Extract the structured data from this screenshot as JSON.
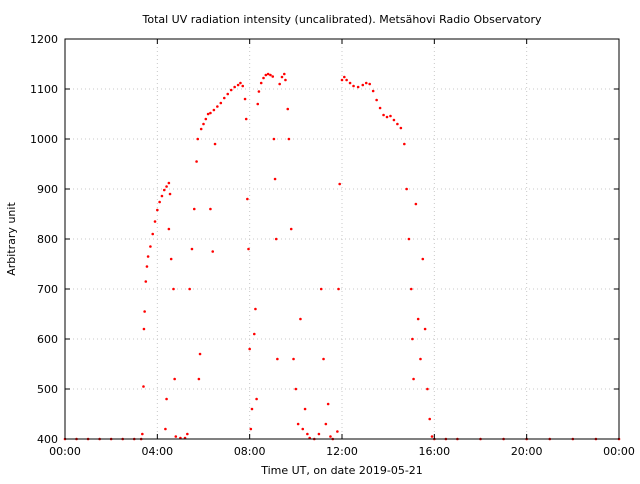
{
  "chart_data": {
    "type": "scatter",
    "title": "Total UV radiation intensity (uncalibrated). Metsähovi Radio Observatory",
    "xlabel": "Time UT, on date 2019-05-21",
    "ylabel": "Arbitrary unit",
    "xlim": [
      0,
      24
    ],
    "ylim": [
      400,
      1200
    ],
    "x_ticks": [
      {
        "value": 0,
        "label": "00:00"
      },
      {
        "value": 4,
        "label": "04:00"
      },
      {
        "value": 8,
        "label": "08:00"
      },
      {
        "value": 12,
        "label": "12:00"
      },
      {
        "value": 16,
        "label": "16:00"
      },
      {
        "value": 20,
        "label": "20:00"
      },
      {
        "value": 24,
        "label": "00:00"
      }
    ],
    "y_ticks": [
      400,
      500,
      600,
      700,
      800,
      900,
      1000,
      1100,
      1200
    ],
    "grid": true,
    "series_color": "#ff0000",
    "series": [
      {
        "name": "",
        "points": [
          [
            0.0,
            400
          ],
          [
            0.5,
            400
          ],
          [
            1.0,
            400
          ],
          [
            1.5,
            400
          ],
          [
            2.0,
            400
          ],
          [
            2.5,
            400
          ],
          [
            3.0,
            400
          ],
          [
            3.3,
            400
          ],
          [
            3.35,
            410
          ],
          [
            3.4,
            505
          ],
          [
            3.42,
            620
          ],
          [
            3.45,
            655
          ],
          [
            3.5,
            715
          ],
          [
            3.55,
            745
          ],
          [
            3.6,
            765
          ],
          [
            3.7,
            785
          ],
          [
            3.8,
            810
          ],
          [
            3.9,
            835
          ],
          [
            4.0,
            858
          ],
          [
            4.1,
            874
          ],
          [
            4.2,
            886
          ],
          [
            4.3,
            898
          ],
          [
            4.4,
            905
          ],
          [
            4.5,
            912
          ],
          [
            4.55,
            890
          ],
          [
            4.35,
            420
          ],
          [
            4.4,
            480
          ],
          [
            4.5,
            820
          ],
          [
            4.6,
            760
          ],
          [
            4.7,
            700
          ],
          [
            4.75,
            520
          ],
          [
            4.8,
            405
          ],
          [
            5.0,
            402
          ],
          [
            5.2,
            402
          ],
          [
            5.3,
            410
          ],
          [
            5.4,
            700
          ],
          [
            5.5,
            780
          ],
          [
            5.6,
            860
          ],
          [
            5.7,
            955
          ],
          [
            5.75,
            1000
          ],
          [
            5.8,
            520
          ],
          [
            5.85,
            570
          ],
          [
            5.9,
            1020
          ],
          [
            6.0,
            1030
          ],
          [
            6.1,
            1040
          ],
          [
            6.2,
            1050
          ],
          [
            6.3,
            1052
          ],
          [
            6.45,
            1058
          ],
          [
            6.6,
            1065
          ],
          [
            6.75,
            1072
          ],
          [
            6.9,
            1082
          ],
          [
            7.05,
            1090
          ],
          [
            7.2,
            1098
          ],
          [
            7.35,
            1104
          ],
          [
            7.5,
            1108
          ],
          [
            7.6,
            1112
          ],
          [
            7.7,
            1106
          ],
          [
            6.3,
            860
          ],
          [
            6.4,
            775
          ],
          [
            6.5,
            990
          ],
          [
            7.8,
            1080
          ],
          [
            7.85,
            1040
          ],
          [
            7.9,
            880
          ],
          [
            7.95,
            780
          ],
          [
            8.0,
            580
          ],
          [
            8.05,
            420
          ],
          [
            8.1,
            460
          ],
          [
            8.2,
            610
          ],
          [
            8.25,
            660
          ],
          [
            8.3,
            480
          ],
          [
            8.35,
            1070
          ],
          [
            8.4,
            1095
          ],
          [
            8.5,
            1112
          ],
          [
            8.6,
            1122
          ],
          [
            8.7,
            1128
          ],
          [
            8.8,
            1130
          ],
          [
            8.9,
            1128
          ],
          [
            9.0,
            1125
          ],
          [
            9.05,
            1000
          ],
          [
            9.1,
            920
          ],
          [
            9.15,
            800
          ],
          [
            9.2,
            560
          ],
          [
            9.3,
            1110
          ],
          [
            9.4,
            1124
          ],
          [
            9.5,
            1130
          ],
          [
            9.55,
            1118
          ],
          [
            9.65,
            1060
          ],
          [
            9.7,
            1000
          ],
          [
            9.8,
            820
          ],
          [
            9.9,
            560
          ],
          [
            10.0,
            500
          ],
          [
            10.1,
            430
          ],
          [
            10.2,
            640
          ],
          [
            10.3,
            420
          ],
          [
            10.4,
            460
          ],
          [
            10.5,
            410
          ],
          [
            10.6,
            402
          ],
          [
            10.8,
            400
          ],
          [
            11.0,
            410
          ],
          [
            11.1,
            700
          ],
          [
            11.2,
            560
          ],
          [
            11.3,
            430
          ],
          [
            11.4,
            470
          ],
          [
            11.5,
            405
          ],
          [
            11.6,
            400
          ],
          [
            11.8,
            415
          ],
          [
            11.85,
            700
          ],
          [
            11.9,
            910
          ],
          [
            12.0,
            1118
          ],
          [
            12.1,
            1124
          ],
          [
            12.2,
            1118
          ],
          [
            12.35,
            1112
          ],
          [
            12.5,
            1106
          ],
          [
            12.7,
            1104
          ],
          [
            12.9,
            1108
          ],
          [
            13.05,
            1112
          ],
          [
            13.2,
            1110
          ],
          [
            13.35,
            1096
          ],
          [
            13.5,
            1078
          ],
          [
            13.65,
            1062
          ],
          [
            13.8,
            1048
          ],
          [
            13.95,
            1044
          ],
          [
            14.1,
            1046
          ],
          [
            14.25,
            1038
          ],
          [
            14.4,
            1030
          ],
          [
            14.55,
            1022
          ],
          [
            14.7,
            990
          ],
          [
            14.8,
            900
          ],
          [
            14.9,
            800
          ],
          [
            15.0,
            700
          ],
          [
            15.05,
            600
          ],
          [
            15.1,
            520
          ],
          [
            15.2,
            870
          ],
          [
            15.3,
            640
          ],
          [
            15.4,
            560
          ],
          [
            15.5,
            760
          ],
          [
            15.6,
            620
          ],
          [
            15.7,
            500
          ],
          [
            15.8,
            440
          ],
          [
            15.9,
            405
          ],
          [
            16.0,
            400
          ],
          [
            16.5,
            400
          ],
          [
            17.0,
            400
          ],
          [
            18.0,
            400
          ],
          [
            19.0,
            400
          ],
          [
            20.0,
            400
          ],
          [
            21.0,
            400
          ],
          [
            22.0,
            400
          ],
          [
            23.0,
            400
          ],
          [
            24.0,
            400
          ]
        ]
      }
    ]
  }
}
